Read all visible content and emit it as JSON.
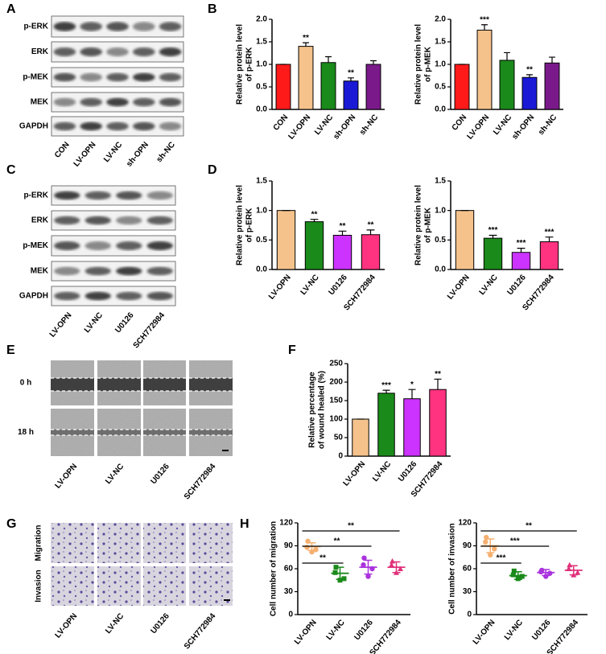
{
  "panel_letters": [
    "A",
    "B",
    "C",
    "D",
    "E",
    "F",
    "G",
    "H"
  ],
  "blot_A": {
    "rows": [
      "p-ERK",
      "ERK",
      "p-MEK",
      "MEK",
      "GAPDH"
    ],
    "lanes": [
      "CON",
      "LV-OPN",
      "LV-NC",
      "sh-OPN",
      "sh-NC"
    ]
  },
  "blot_C": {
    "rows": [
      "p-ERK",
      "ERK",
      "p-MEK",
      "MEK",
      "GAPDH"
    ],
    "lanes": [
      "LV-OPN",
      "LV-NC",
      "U0126",
      "SCH772984"
    ]
  },
  "wound_E": {
    "times": [
      "0 h",
      "18 h"
    ],
    "lanes": [
      "LV-OPN",
      "LV-NC",
      "U0126",
      "SCH772984"
    ]
  },
  "transwell_G": {
    "rows": [
      "Migration",
      "Invasion"
    ],
    "lanes": [
      "LV-OPN",
      "LV-NC",
      "U0126",
      "SCH772984"
    ]
  },
  "chart_data": [
    {
      "type": "bar",
      "y_label": [
        "Relative protein level",
        "of p-ERK"
      ],
      "categories": [
        "CON",
        "LV-OPN",
        "LV-NC",
        "sh-OPN",
        "sh-NC"
      ],
      "values": [
        1.0,
        1.4,
        1.04,
        0.63,
        1.0
      ],
      "errors": [
        0,
        0.08,
        0.13,
        0.07,
        0.08
      ],
      "annotations": [
        null,
        "**",
        null,
        "**",
        null
      ],
      "colors": [
        "#ff1a1a",
        "#f5c28c",
        "#1a8a1a",
        "#1a1ad6",
        "#7a1a8a"
      ],
      "ylim": [
        0,
        2
      ],
      "yticks": [
        {
          "value": 0,
          "label": "0.0"
        },
        0.5,
        {
          "value": 1,
          "label": "1.0"
        },
        1.5,
        {
          "value": 2,
          "label": "2.0"
        }
      ]
    },
    {
      "type": "bar",
      "y_label": [
        "Relative protein level",
        "of p-MEK"
      ],
      "categories": [
        "CON",
        "LV-OPN",
        "LV-NC",
        "sh-OPN",
        "sh-NC"
      ],
      "values": [
        1.0,
        1.76,
        1.09,
        0.71,
        1.03
      ],
      "errors": [
        0,
        0.12,
        0.17,
        0.06,
        0.13
      ],
      "annotations": [
        null,
        "***",
        null,
        "**",
        null
      ],
      "colors": [
        "#ff1a1a",
        "#f5c28c",
        "#1a8a1a",
        "#1a1ad6",
        "#7a1a8a"
      ],
      "ylim": [
        0,
        2
      ],
      "yticks": [
        {
          "value": 0,
          "label": "0.0"
        },
        0.5,
        {
          "value": 1,
          "label": "1.0"
        },
        1.5,
        {
          "value": 2,
          "label": "2.0"
        }
      ]
    },
    {
      "type": "bar",
      "y_label": [
        "Relative protein level",
        "of p-ERK"
      ],
      "categories": [
        "LV-OPN",
        "LV-NC",
        "U0126",
        "SCH772984"
      ],
      "values": [
        1.0,
        0.81,
        0.58,
        0.59
      ],
      "errors": [
        0,
        0.04,
        0.07,
        0.08
      ],
      "annotations": [
        null,
        "**",
        "**",
        "**"
      ],
      "colors": [
        "#f5c28c",
        "#1a8a1a",
        "#cc33ff",
        "#ff3380"
      ],
      "ylim": [
        0,
        1.5
      ],
      "yticks": [
        {
          "value": 0,
          "label": "0.0"
        },
        0.5,
        {
          "value": 1,
          "label": "1.0"
        },
        1.5
      ]
    },
    {
      "type": "bar",
      "y_label": [
        "Relative protein level",
        "of p-MEK"
      ],
      "categories": [
        "LV-OPN",
        "LV-NC",
        "U0126",
        "SCH772984"
      ],
      "values": [
        1.0,
        0.53,
        0.29,
        0.47
      ],
      "errors": [
        0,
        0.05,
        0.07,
        0.08
      ],
      "annotations": [
        null,
        "***",
        "***",
        "***"
      ],
      "colors": [
        "#f5c28c",
        "#1a8a1a",
        "#cc33ff",
        "#ff3380"
      ],
      "ylim": [
        0,
        1.5
      ],
      "yticks": [
        {
          "value": 0,
          "label": "0.0"
        },
        0.5,
        {
          "value": 1,
          "label": "1.0"
        },
        1.5
      ]
    },
    {
      "type": "bar",
      "y_label": [
        "Relative percentage",
        "of wound healed (%)"
      ],
      "categories": [
        "LV-OPN",
        "LV-NC",
        "U0126",
        "SCH772984"
      ],
      "values": [
        100,
        170,
        155,
        180
      ],
      "errors": [
        0,
        8,
        25,
        28
      ],
      "annotations": [
        null,
        "***",
        "*",
        "**"
      ],
      "colors": [
        "#f5c28c",
        "#1a8a1a",
        "#cc33ff",
        "#ff3380"
      ],
      "ylim": [
        0,
        250
      ],
      "yticks": [
        0,
        50,
        100,
        150,
        200,
        250
      ]
    },
    {
      "type": "dot",
      "y_label": [
        "Cell number of migration"
      ],
      "categories": [
        "LV-OPN",
        "LV-NC",
        "U0126",
        "SCH772984"
      ],
      "points": [
        [
          96,
          88,
          85,
          82
        ],
        [
          62,
          55,
          47,
          45
        ],
        [
          74,
          65,
          60,
          50
        ],
        [
          70,
          65,
          60,
          55
        ]
      ],
      "means": [
        89,
        54,
        62,
        62
      ],
      "sds": [
        5,
        8,
        9,
        7
      ],
      "comparison_labels": [
        "**",
        "**",
        "**"
      ],
      "colors": [
        "#f5b070",
        "#1a8a1a",
        "#aa33dd",
        "#e0307a"
      ],
      "ylim": [
        0,
        120
      ],
      "yticks": [
        0,
        30,
        60,
        90,
        120
      ]
    },
    {
      "type": "dot",
      "y_label": [
        "Cell number of invasion"
      ],
      "categories": [
        "LV-OPN",
        "LV-NC",
        "U0126",
        "SCH772984"
      ],
      "points": [
        [
          101,
          95,
          86,
          78
        ],
        [
          57,
          52,
          50,
          47
        ],
        [
          58,
          56,
          54,
          50
        ],
        [
          65,
          60,
          55,
          52
        ]
      ],
      "means": [
        90,
        51,
        55,
        58
      ],
      "sds": [
        9,
        5,
        4,
        6
      ],
      "comparison_labels": [
        "***",
        "***",
        "**"
      ],
      "colors": [
        "#f5b070",
        "#1a8a1a",
        "#aa33dd",
        "#e0307a"
      ],
      "ylim": [
        0,
        120
      ],
      "yticks": [
        0,
        30,
        60,
        90,
        120
      ]
    }
  ]
}
